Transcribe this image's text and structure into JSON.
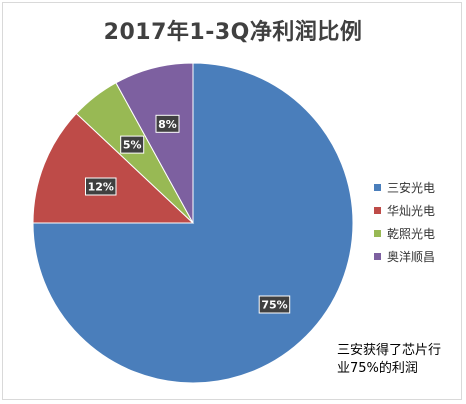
{
  "chart_data": {
    "type": "pie",
    "title": "2017年1-3Q净利润比例",
    "categories": [
      "三安光电",
      "华灿光电",
      "乾照光电",
      "奥洋顺昌"
    ],
    "values": [
      75,
      12,
      5,
      8
    ],
    "value_labels": [
      "75%",
      "12%",
      "5%",
      "8%"
    ],
    "colors": [
      "#4a7ebb",
      "#be4b48",
      "#98b954",
      "#7d60a0"
    ],
    "start_angle_deg": 0,
    "direction": "clockwise",
    "legend_position": "right",
    "annotation": "三安获得了芯片行业75%的利润"
  }
}
